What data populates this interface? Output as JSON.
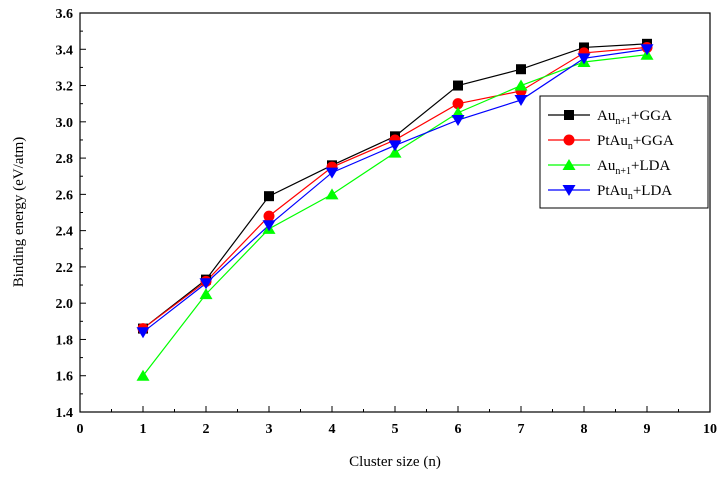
{
  "chart_data": {
    "type": "line",
    "title": "",
    "xlabel": "Cluster size (n)",
    "ylabel": "Binding energy (eV/atm)",
    "xlim": [
      0,
      10
    ],
    "ylim": [
      1.4,
      3.6
    ],
    "xticks": [
      0,
      1,
      2,
      3,
      4,
      5,
      6,
      7,
      8,
      9,
      10
    ],
    "yticks": [
      1.4,
      1.6,
      1.8,
      2.0,
      2.2,
      2.4,
      2.6,
      2.8,
      3.0,
      3.2,
      3.4,
      3.6
    ],
    "grid": false,
    "legend_position": "right",
    "x": [
      1,
      2,
      3,
      4,
      5,
      6,
      7,
      8,
      9
    ],
    "series": [
      {
        "name": "Au_{n+1}+GGA",
        "legend_base": "Au",
        "legend_sub": "n+1",
        "legend_tail": "+GGA",
        "color": "#000000",
        "marker": "square",
        "values": [
          1.86,
          2.13,
          2.59,
          2.76,
          2.92,
          3.2,
          3.29,
          3.41,
          3.43
        ]
      },
      {
        "name": "PtAu_n+GGA",
        "legend_base": "PtAu",
        "legend_sub": "n",
        "legend_tail": "+GGA",
        "color": "#ff0000",
        "marker": "circle",
        "values": [
          1.86,
          2.12,
          2.48,
          2.75,
          2.9,
          3.1,
          3.17,
          3.38,
          3.41
        ]
      },
      {
        "name": "Au_{n+1}+LDA",
        "legend_base": "Au",
        "legend_sub": "n+1",
        "legend_tail": "+LDA",
        "color": "#00ff00",
        "marker": "triangle-up",
        "values": [
          1.6,
          2.05,
          2.41,
          2.6,
          2.83,
          3.05,
          3.2,
          3.33,
          3.37
        ]
      },
      {
        "name": "PtAu_n+LDA",
        "legend_base": "PtAu",
        "legend_sub": "n",
        "legend_tail": "+LDA",
        "color": "#0000ff",
        "marker": "triangle-down",
        "values": [
          1.84,
          2.11,
          2.43,
          2.72,
          2.87,
          3.01,
          3.12,
          3.35,
          3.4
        ]
      }
    ]
  }
}
